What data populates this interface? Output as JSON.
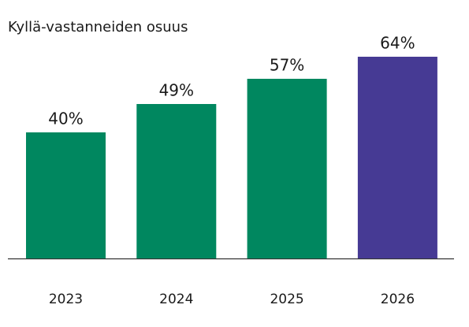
{
  "chart_data": {
    "type": "bar",
    "title": "Kyllä-vastanneiden osuus",
    "categories": [
      "2023",
      "2024",
      "2025",
      "2026"
    ],
    "values": [
      40,
      49,
      57,
      64
    ],
    "value_labels": [
      "40%",
      "49%",
      "57%",
      "64%"
    ],
    "colors": [
      "#00875f",
      "#00875f",
      "#00875f",
      "#463a94"
    ]
  }
}
